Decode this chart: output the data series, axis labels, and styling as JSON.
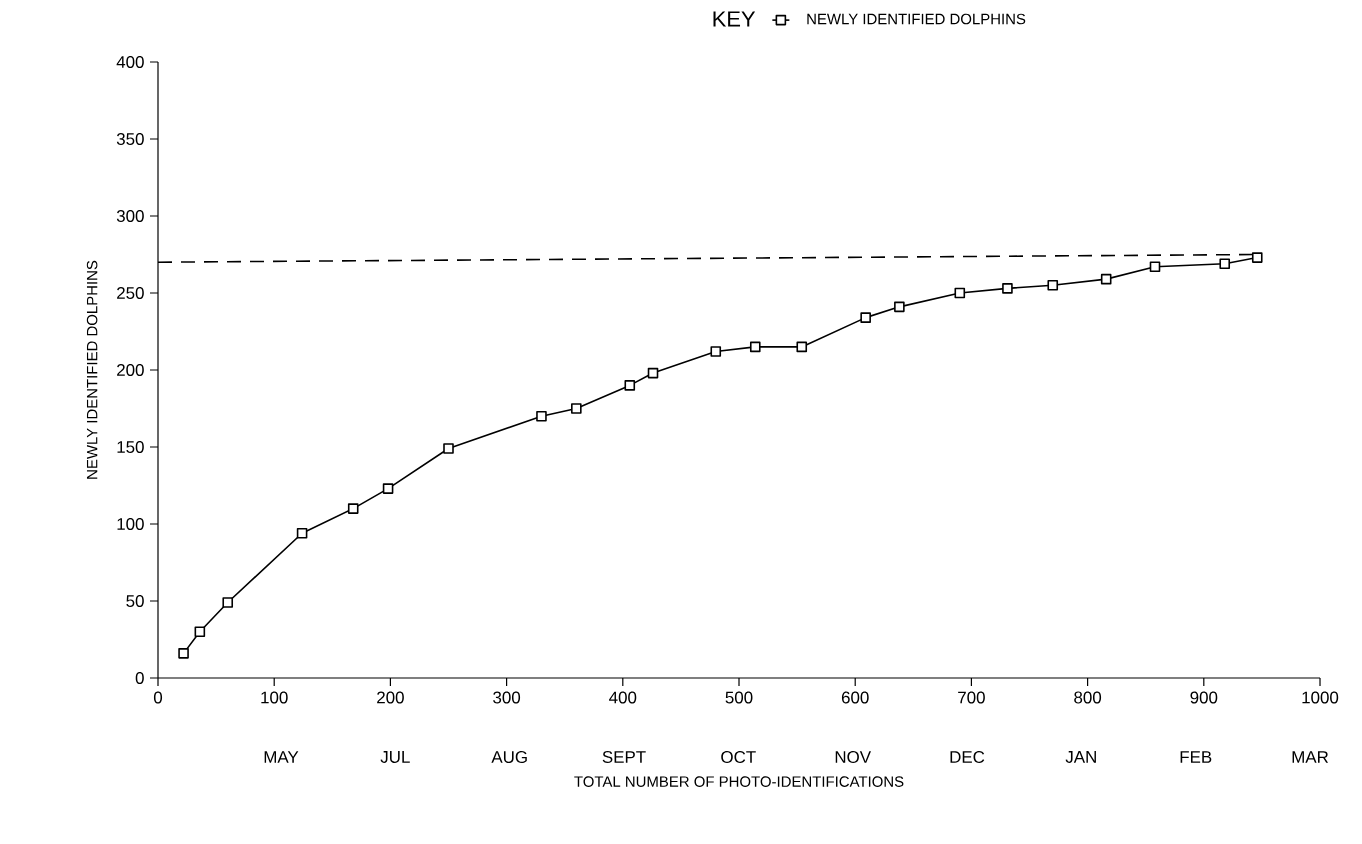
{
  "chart_data": {
    "type": "line",
    "xlabel": "TOTAL NUMBER OF PHOTO-IDENTIFICATIONS",
    "ylabel": "NEWLY IDENTIFIED DOLPHINS",
    "legend_title": "KEY",
    "legend": "top right",
    "marker": "square",
    "line_style": "solid",
    "xlim": [
      0,
      1000
    ],
    "xticks": [
      0,
      100,
      200,
      300,
      400,
      500,
      600,
      700,
      800,
      900,
      1000
    ],
    "ylim": [
      0,
      400
    ],
    "yticks": [
      0,
      50,
      100,
      150,
      200,
      250,
      300,
      350,
      400
    ],
    "annotations": [
      "MAY",
      "JUL",
      "AUG",
      "SEPT",
      "OCT",
      "NOV",
      "DEC",
      "JAN",
      "FEB",
      "MAR"
    ],
    "series": [
      {
        "name": "NEWLY IDENTIFIED DOLPHINS",
        "color": "#000000",
        "x": [
          22,
          36,
          60,
          124,
          168,
          198,
          250,
          330,
          360,
          406,
          426,
          480,
          514,
          554,
          609,
          638,
          690,
          731,
          770,
          816,
          858,
          918,
          946
        ],
        "values": [
          16,
          30,
          49,
          94,
          110,
          123,
          149,
          170,
          175,
          190,
          198,
          212,
          215,
          215,
          234,
          241,
          250,
          253,
          255,
          259,
          267,
          269,
          273
        ]
      },
      {
        "type": "line",
        "color": "#000000",
        "x": [
          0,
          945
        ],
        "values": [
          270,
          275
        ],
        "line_style": "dashed",
        "marker": "none"
      }
    ]
  }
}
